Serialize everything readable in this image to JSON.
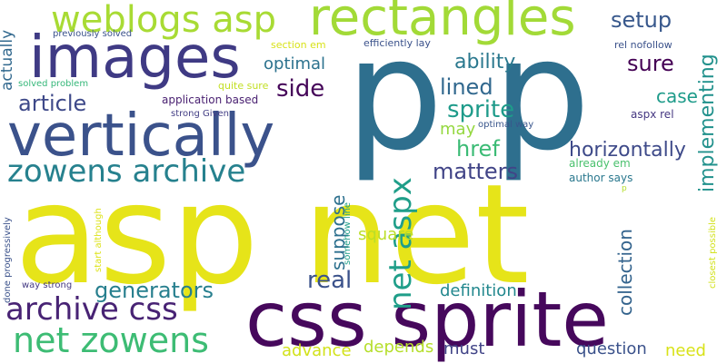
{
  "words": [
    {
      "text": "asp net",
      "color": "#e6e419"
    },
    {
      "text": "p p",
      "color": "#2e6f8e"
    },
    {
      "text": "css sprite",
      "color": "#46085c"
    },
    {
      "text": "vertically",
      "color": "#3b528b"
    },
    {
      "text": "images",
      "color": "#3f3a84"
    },
    {
      "text": "rectangles",
      "color": "#a2da37"
    },
    {
      "text": "weblogs asp",
      "color": "#a8db34"
    },
    {
      "text": "zowens archive",
      "color": "#26818e"
    },
    {
      "text": "net zowens",
      "color": "#3dbc74"
    },
    {
      "text": "archive css",
      "color": "#482374"
    },
    {
      "text": "net aspx",
      "color": "#1f9e89"
    },
    {
      "text": "implementing",
      "color": "#21918c"
    },
    {
      "text": "setup",
      "color": "#38588c"
    },
    {
      "text": "sure",
      "color": "#440154"
    },
    {
      "text": "ability",
      "color": "#2a788e"
    },
    {
      "text": "lined",
      "color": "#31688e"
    },
    {
      "text": "sprite",
      "color": "#1e9b8a"
    },
    {
      "text": "href",
      "color": "#3bbb75"
    },
    {
      "text": "matters",
      "color": "#414487"
    },
    {
      "text": "horizontally",
      "color": "#3e4a89"
    },
    {
      "text": "article",
      "color": "#3e4989"
    },
    {
      "text": "side",
      "color": "#450559"
    },
    {
      "text": "optimal",
      "color": "#2c728e"
    },
    {
      "text": "may",
      "color": "#95d840"
    },
    {
      "text": "case",
      "color": "#1e9b8a"
    },
    {
      "text": "generators",
      "color": "#277f8e"
    },
    {
      "text": "real",
      "color": "#3b528b"
    },
    {
      "text": "suppose",
      "color": "#2d708e"
    },
    {
      "text": "square",
      "color": "#bade28"
    },
    {
      "text": "definition",
      "color": "#23888e"
    },
    {
      "text": "collection",
      "color": "#33638d"
    },
    {
      "text": "question",
      "color": "#3b528b"
    },
    {
      "text": "need",
      "color": "#d8e219"
    },
    {
      "text": "advance",
      "color": "#d2e21b"
    },
    {
      "text": "depends",
      "color": "#b5de2b"
    },
    {
      "text": "must",
      "color": "#414487"
    },
    {
      "text": "actually",
      "color": "#31688e"
    },
    {
      "text": "previously solved",
      "color": "#3b528b"
    },
    {
      "text": "section em",
      "color": "#d8e219"
    },
    {
      "text": "efficiently lay",
      "color": "#3b528b"
    },
    {
      "text": "rel nofollow",
      "color": "#3b528b"
    },
    {
      "text": "solved problem",
      "color": "#35b779"
    },
    {
      "text": "quite sure",
      "color": "#c2df23"
    },
    {
      "text": "application based",
      "color": "#481f70"
    },
    {
      "text": "strong Given",
      "color": "#433e85"
    },
    {
      "text": "aspx rel",
      "color": "#453781"
    },
    {
      "text": "optimal way",
      "color": "#39568c"
    },
    {
      "text": "already em",
      "color": "#4ac16d"
    },
    {
      "text": "author says",
      "color": "#2a788e"
    },
    {
      "text": "p",
      "color": "#b5de2b"
    },
    {
      "text": "done progressively",
      "color": "#3b528b"
    },
    {
      "text": "start although",
      "color": "#dde318"
    },
    {
      "text": "somehow line",
      "color": "#1f9e89"
    },
    {
      "text": "way strong",
      "color": "#443983"
    },
    {
      "text": "closest possible",
      "color": "#d2e21b"
    }
  ]
}
